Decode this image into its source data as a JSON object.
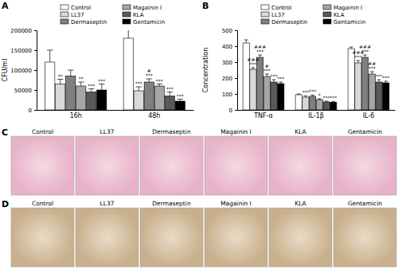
{
  "chart_data": [
    {
      "type": "bar",
      "title": "A",
      "y_label": "CFU/ml",
      "categories": [
        "16h",
        "48h"
      ],
      "ylim": [
        0,
        200000
      ],
      "yticks": [
        0,
        50000,
        100000,
        150000,
        200000
      ],
      "grid": false,
      "legend": "top",
      "series": [
        {
          "name": "Control",
          "color": "#ffffff",
          "values": [
            120000,
            180000
          ],
          "errors": [
            30000,
            30000
          ],
          "annotations": [
            null,
            null
          ]
        },
        {
          "name": "LL37",
          "color": "#d9d9d9",
          "values": [
            65000,
            48000
          ],
          "errors": [
            12000,
            10000
          ],
          "annotations": [
            [
              "**"
            ],
            [
              "***"
            ]
          ]
        },
        {
          "name": "Dermaseptin",
          "color": "#808080",
          "values": [
            85000,
            70000
          ],
          "errors": [
            15000,
            8000
          ],
          "annotations": [
            null,
            [
              "#",
              "***"
            ]
          ]
        },
        {
          "name": "Magainin I",
          "color": "#a6a6a6",
          "values": [
            60000,
            60000
          ],
          "errors": [
            10000,
            5000
          ],
          "annotations": [
            [
              "**"
            ],
            [
              "***"
            ]
          ]
        },
        {
          "name": "KLA",
          "color": "#595959",
          "values": [
            45000,
            35000
          ],
          "errors": [
            8000,
            10000
          ],
          "annotations": [
            [
              "***"
            ],
            [
              "***"
            ]
          ]
        },
        {
          "name": "Gentamicin",
          "color": "#000000",
          "values": [
            50000,
            22000
          ],
          "errors": [
            15000,
            5000
          ],
          "annotations": [
            [
              "***"
            ],
            [
              "***"
            ]
          ]
        }
      ]
    },
    {
      "type": "bar",
      "title": "B",
      "y_label": "Concentration",
      "categories": [
        "TNF-α",
        "IL-1β",
        "IL-6"
      ],
      "ylim": [
        0,
        500
      ],
      "yticks": [
        0,
        100,
        200,
        300,
        400,
        500
      ],
      "grid": false,
      "legend": "top",
      "series": [
        {
          "name": "Control",
          "color": "#ffffff",
          "values": [
            420,
            95,
            385
          ],
          "errors": [
            20,
            5,
            10
          ],
          "annotations": [
            null,
            null,
            null
          ]
        },
        {
          "name": "LL37",
          "color": "#d9d9d9",
          "values": [
            255,
            80,
            295
          ],
          "errors": [
            10,
            8,
            15
          ],
          "annotations": [
            [
              "###",
              "***"
            ],
            [
              "***"
            ],
            [
              "###",
              "***"
            ]
          ]
        },
        {
          "name": "Dermaseptin",
          "color": "#808080",
          "values": [
            330,
            85,
            330
          ],
          "errors": [
            15,
            8,
            15
          ],
          "annotations": [
            [
              "###",
              "***"
            ],
            [
              "***"
            ],
            [
              "###",
              "***"
            ]
          ]
        },
        {
          "name": "Magainin I",
          "color": "#a6a6a6",
          "values": [
            210,
            65,
            225
          ],
          "errors": [
            15,
            5,
            15
          ],
          "annotations": [
            [
              "#",
              "***"
            ],
            [
              "*"
            ],
            [
              "##",
              "***"
            ]
          ]
        },
        {
          "name": "KLA",
          "color": "#595959",
          "values": [
            175,
            50,
            175
          ],
          "errors": [
            15,
            5,
            15
          ],
          "annotations": [
            [
              "***"
            ],
            [
              "***"
            ],
            [
              "***"
            ]
          ]
        },
        {
          "name": "Gentamicin",
          "color": "#000000",
          "values": [
            165,
            48,
            170
          ],
          "errors": [
            10,
            5,
            10
          ],
          "annotations": [
            [
              "***"
            ],
            [
              "***"
            ],
            [
              "***"
            ]
          ]
        }
      ]
    }
  ],
  "image_panels": [
    {
      "label": "C",
      "captions": [
        "Control",
        "LL37",
        "Dermaseptin",
        "Magainin I",
        "KLA",
        "Gentamicin"
      ]
    },
    {
      "label": "D",
      "captions": [
        "Control",
        "LL37",
        "Dermaseptin",
        "Magainin I",
        "KLA",
        "Gentamicin"
      ]
    }
  ]
}
